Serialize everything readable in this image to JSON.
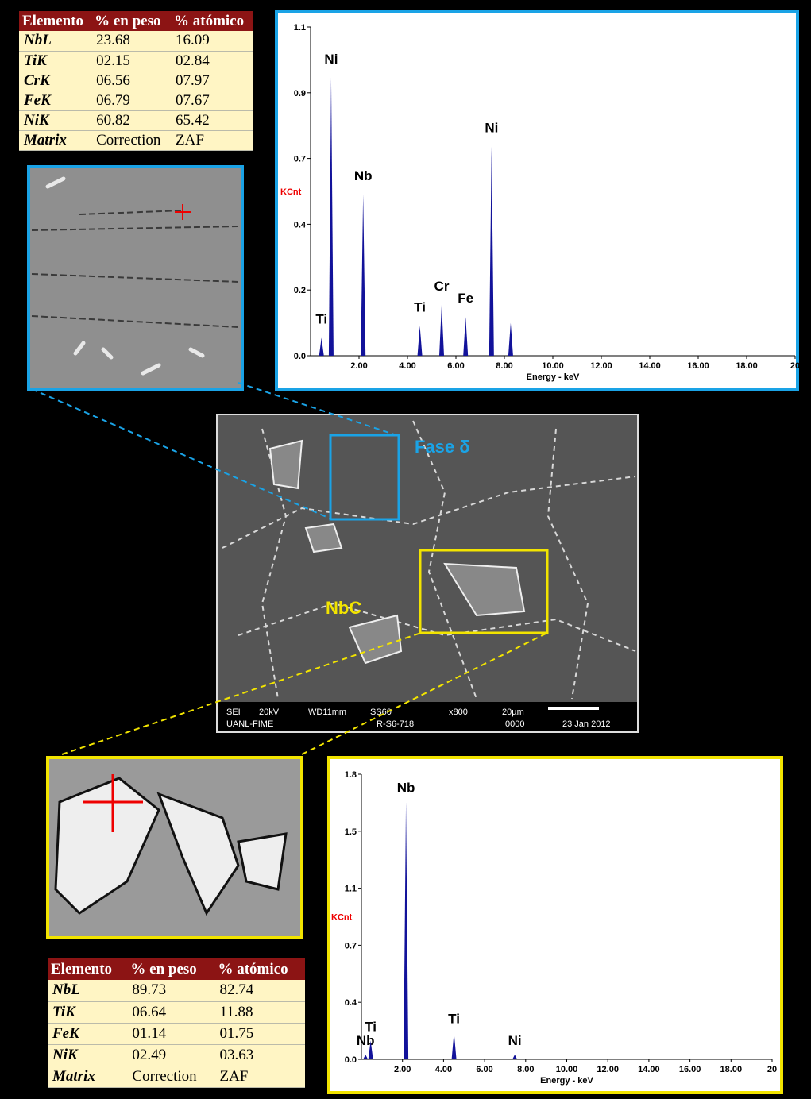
{
  "top_table": {
    "header": [
      "Elemento",
      "% en peso",
      "% atómico"
    ],
    "rows": [
      [
        "NbL",
        "23.68",
        "16.09"
      ],
      [
        "TiK",
        "02.15",
        "02.84"
      ],
      [
        "CrK",
        "06.56",
        "07.97"
      ],
      [
        "FeK",
        "06.79",
        "07.67"
      ],
      [
        "NiK",
        "60.82",
        "65.42"
      ],
      [
        "Matrix",
        "Correction",
        "ZAF"
      ]
    ]
  },
  "top_spectrum": {
    "y_label": "KCnt",
    "x_label": "Energy - keV",
    "xlim": [
      0,
      20
    ],
    "xticks": [
      {
        "value": 2,
        "label": "2.00"
      },
      {
        "value": 4,
        "label": "4.00"
      },
      {
        "value": 6,
        "label": "6.00"
      },
      {
        "value": 8,
        "label": "8.00"
      },
      {
        "value": 10,
        "label": "10.00"
      },
      {
        "value": 12,
        "label": "12.00"
      },
      {
        "value": 14,
        "label": "14.00"
      },
      {
        "value": 16,
        "label": "16.00"
      },
      {
        "value": 18,
        "label": "18.00"
      },
      20
    ],
    "ylim": [
      0,
      1.1
    ],
    "yticks": [
      {
        "value": 0,
        "label": "0.0"
      },
      {
        "value": 0.22,
        "label": "0.2"
      },
      {
        "value": 0.44,
        "label": "0.4"
      },
      {
        "value": 0.66,
        "label": "0.7"
      },
      {
        "value": 0.88,
        "label": "0.9"
      },
      1.1
    ],
    "color": "#12129a",
    "peaks": [
      {
        "label": "Ti",
        "energy": 0.45,
        "height": 0.06
      },
      {
        "label": "Ni",
        "energy": 0.85,
        "height": 0.93
      },
      {
        "label": "Nb",
        "energy": 2.17,
        "height": 0.54
      },
      {
        "label": "Ti",
        "energy": 4.51,
        "height": 0.1
      },
      {
        "label": "Cr",
        "energy": 5.41,
        "height": 0.17
      },
      {
        "label": "Fe",
        "energy": 6.4,
        "height": 0.13
      },
      {
        "label": "Ni",
        "energy": 7.47,
        "height": 0.7
      },
      {
        "label": null,
        "energy": 8.26,
        "height": 0.11
      }
    ]
  },
  "sem_image": {
    "phase_label": "Fase δ",
    "carbide_label": "NbC",
    "info": [
      "SEI",
      "20kV",
      "WD11mm",
      "SS60",
      "x800",
      "20µm",
      "UANL-FIME",
      "R-S6-718",
      "0000",
      "23 Jan 2012"
    ]
  },
  "bottom_table": {
    "header": [
      "Elemento",
      "% en peso",
      "% atómico"
    ],
    "rows": [
      [
        "NbL",
        "89.73",
        "82.74"
      ],
      [
        "TiK",
        "06.64",
        "11.88"
      ],
      [
        "FeK",
        "01.14",
        "01.75"
      ],
      [
        "NiK",
        "02.49",
        "03.63"
      ],
      [
        "Matrix",
        "Correction",
        "ZAF"
      ]
    ]
  },
  "bottom_spectrum": {
    "y_label": "KCnt",
    "x_label": "Energy - keV",
    "xlim": [
      0,
      20
    ],
    "xticks": [
      {
        "value": 2,
        "label": "2.00"
      },
      {
        "value": 4,
        "label": "4.00"
      },
      {
        "value": 6,
        "label": "6.00"
      },
      {
        "value": 8,
        "label": "8.00"
      },
      {
        "value": 10,
        "label": "10.00"
      },
      {
        "value": 12,
        "label": "12.00"
      },
      {
        "value": 14,
        "label": "14.00"
      },
      {
        "value": 16,
        "label": "16.00"
      },
      {
        "value": 18,
        "label": "18.00"
      },
      20
    ],
    "ylim": [
      0,
      1.825
    ],
    "yticks": [
      {
        "value": 0,
        "label": "0.0"
      },
      {
        "value": 0.365,
        "label": "0.4"
      },
      {
        "value": 0.73,
        "label": "0.7"
      },
      {
        "value": 1.095,
        "label": "1.1"
      },
      {
        "value": 1.46,
        "label": "1.5"
      },
      {
        "value": 1.825,
        "label": "1.8"
      }
    ],
    "color": "#12129a",
    "peaks": [
      {
        "label": "Nb",
        "energy": 0.2,
        "height": 0.03
      },
      {
        "label": "Ti",
        "energy": 0.45,
        "height": 0.12
      },
      {
        "label": "Nb",
        "energy": 2.17,
        "height": 1.65
      },
      {
        "label": "Ti",
        "energy": 4.51,
        "height": 0.17
      },
      {
        "label": "Ni",
        "energy": 7.47,
        "height": 0.03
      }
    ]
  }
}
